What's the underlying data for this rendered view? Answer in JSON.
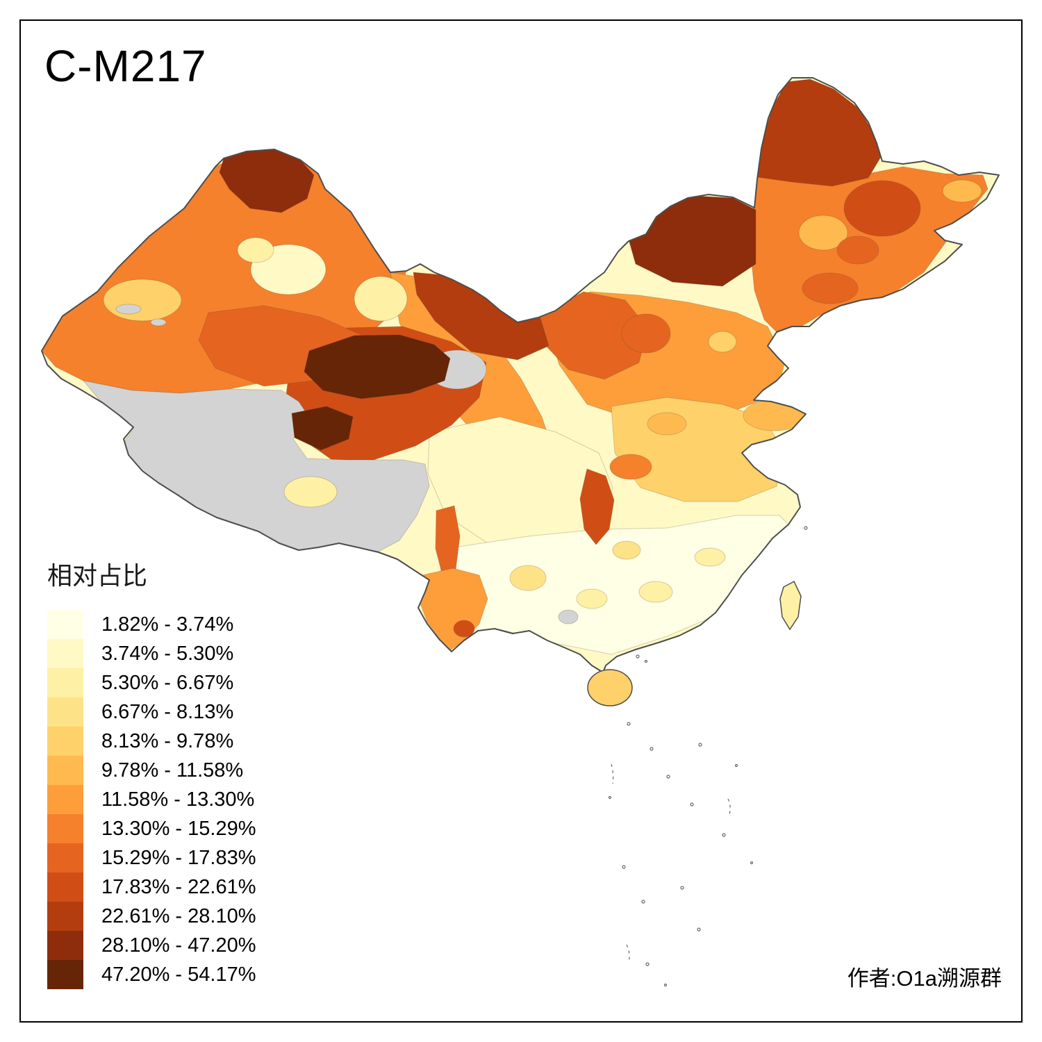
{
  "title": "C-M217",
  "legend": {
    "title": "相对占比",
    "items": [
      {
        "label": "1.82% - 3.74%",
        "color": "#FFFFE5"
      },
      {
        "label": "3.74% - 5.30%",
        "color": "#FFF9C6"
      },
      {
        "label": "5.30% - 6.67%",
        "color": "#FEF0A5"
      },
      {
        "label": "6.67% - 8.13%",
        "color": "#FEE287"
      },
      {
        "label": "8.13% - 9.78%",
        "color": "#FED16A"
      },
      {
        "label": "9.78% - 11.58%",
        "color": "#FEBA4F"
      },
      {
        "label": "11.58% - 13.30%",
        "color": "#FD9E3B"
      },
      {
        "label": "13.30% - 15.29%",
        "color": "#F5812D"
      },
      {
        "label": "15.29% - 17.83%",
        "color": "#E56520"
      },
      {
        "label": "17.83% - 22.61%",
        "color": "#D04E15"
      },
      {
        "label": "22.61% - 28.10%",
        "color": "#B33D0E"
      },
      {
        "label": "28.10% - 47.20%",
        "color": "#8E2D0B"
      },
      {
        "label": "47.20% - 54.17%",
        "color": "#662506"
      }
    ]
  },
  "author": "作者:O1a溯源群",
  "chart_data": {
    "type": "choropleth",
    "title": "C-M217",
    "legend_title": "相对占比",
    "breaks_percent": [
      1.82,
      3.74,
      5.3,
      6.67,
      8.13,
      9.78,
      11.58,
      13.3,
      15.29,
      17.83,
      22.61,
      28.1,
      47.2,
      54.17
    ],
    "no_data_regions": [
      "西藏",
      "柴达木",
      "广西局部"
    ]
  },
  "map": {
    "no_data_color": "#D3D3D3",
    "outline_color": "#4D4D4D",
    "regions": {
      "china-base": 2,
      "xinjiang-base": 8,
      "xinjiang-altay-dark": 12,
      "xinjiang-central-pale": 2,
      "xinjiang-central-pale-2": 3,
      "xinjiang-west-light": 5,
      "xinjiang-south-orange": 9,
      "xinjiang-gray-1": "no-data",
      "xinjiang-gray-2": "no-data",
      "hami-pale": 3,
      "gansu-corridor": 7,
      "alxa-dark": 11,
      "ordos-band": 9,
      "inner-mongolia-central-dark": 12,
      "hulunbuir-dark": 11,
      "northeast-base": 8,
      "heilongjiang-east-orange": 10,
      "jilin-light-patch": 6,
      "songyuan-orange": 9,
      "far-east-light": 6,
      "liaoning-orange": 9,
      "north-china-band": 7,
      "shanxi-north-dark": 9,
      "beijing-patch": 5,
      "shandong-light": 6,
      "henan-orange-spot": 6,
      "central-plain": 5,
      "sichuan-basin": 2,
      "south-china": 1,
      "qinghai-ring": 10,
      "qaidam-gray": "no-data",
      "qinghai-dark": 13,
      "yushu-dark": 13,
      "tibet": "no-data",
      "tibet-pale-patch": 3,
      "chongqing-dark": 10,
      "hubei-west-orange": 8,
      "liangshan-orange": 9,
      "yunnan-base": 7,
      "yunnan-south-dark": 10,
      "guangxi-gray": "no-data",
      "south-patch-1": 4,
      "south-patch-2": 3,
      "south-patch-3": 3,
      "south-patch-4": 3,
      "south-patch-5": 4,
      "hainan": 5,
      "taiwan": 3
    }
  }
}
